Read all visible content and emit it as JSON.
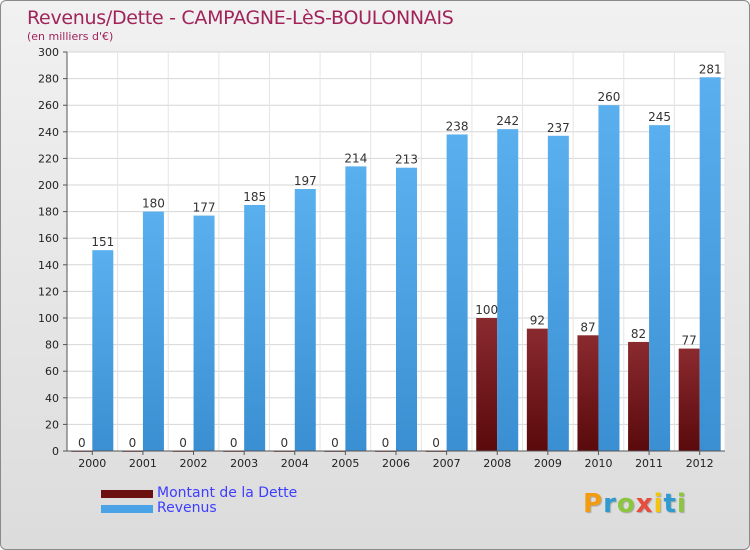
{
  "chart_data": {
    "type": "bar",
    "title": "Revenus/Dette - CAMPAGNE-LèS-BOULONNAIS",
    "subtitle": "(en milliers d'€)",
    "categories": [
      "2000",
      "2001",
      "2002",
      "2003",
      "2004",
      "2005",
      "2006",
      "2007",
      "2008",
      "2009",
      "2010",
      "2011",
      "2012"
    ],
    "series": [
      {
        "name": "Montant de la Dette",
        "color": "#6b0f10",
        "values": [
          0,
          0,
          0,
          0,
          0,
          0,
          0,
          0,
          100,
          92,
          87,
          82,
          77
        ]
      },
      {
        "name": "Revenus",
        "color": "#4aa3e6",
        "values": [
          151,
          180,
          177,
          185,
          197,
          214,
          213,
          238,
          242,
          237,
          260,
          245,
          281
        ]
      }
    ],
    "ylim": [
      0,
      300
    ],
    "yticks": [
      0,
      20,
      40,
      60,
      80,
      100,
      120,
      140,
      160,
      180,
      200,
      220,
      240,
      260,
      280,
      300
    ],
    "grid": true,
    "legend_position": "bottom-left"
  },
  "logo": {
    "text": "Proxiti"
  }
}
